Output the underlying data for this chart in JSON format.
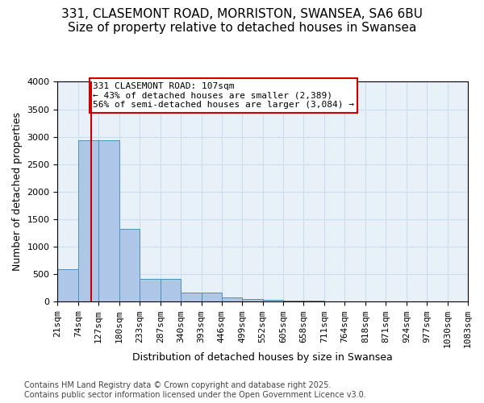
{
  "title_line1": "331, CLASEMONT ROAD, MORRISTON, SWANSEA, SA6 6BU",
  "title_line2": "Size of property relative to detached houses in Swansea",
  "xlabel": "Distribution of detached houses by size in Swansea",
  "ylabel": "Number of detached properties",
  "bin_edges": [
    21,
    74,
    127,
    180,
    233,
    287,
    340,
    393,
    446,
    499,
    552,
    605,
    658,
    711,
    764,
    818,
    871,
    924,
    977,
    1030,
    1083
  ],
  "bar_heights": [
    600,
    2930,
    2930,
    1330,
    420,
    420,
    165,
    165,
    85,
    50,
    30,
    20,
    15,
    10,
    8,
    6,
    4,
    3,
    2,
    1
  ],
  "bar_color": "#aec6e8",
  "bar_edgecolor": "#4f8fbf",
  "property_size": 107,
  "red_line_color": "#cc0000",
  "annotation_text": "331 CLASEMONT ROAD: 107sqm\n← 43% of detached houses are smaller (2,389)\n56% of semi-detached houses are larger (3,084) →",
  "annotation_box_edgecolor": "#cc0000",
  "annotation_box_facecolor": "#ffffff",
  "ylim": [
    0,
    4000
  ],
  "yticks": [
    0,
    500,
    1000,
    1500,
    2000,
    2500,
    3000,
    3500,
    4000
  ],
  "grid_color": "#ccddee",
  "background_color": "#e8f0f8",
  "footer_text": "Contains HM Land Registry data © Crown copyright and database right 2025.\nContains public sector information licensed under the Open Government Licence v3.0.",
  "title_fontsize": 11,
  "axis_label_fontsize": 9,
  "tick_fontsize": 8,
  "annotation_fontsize": 8,
  "footer_fontsize": 7
}
